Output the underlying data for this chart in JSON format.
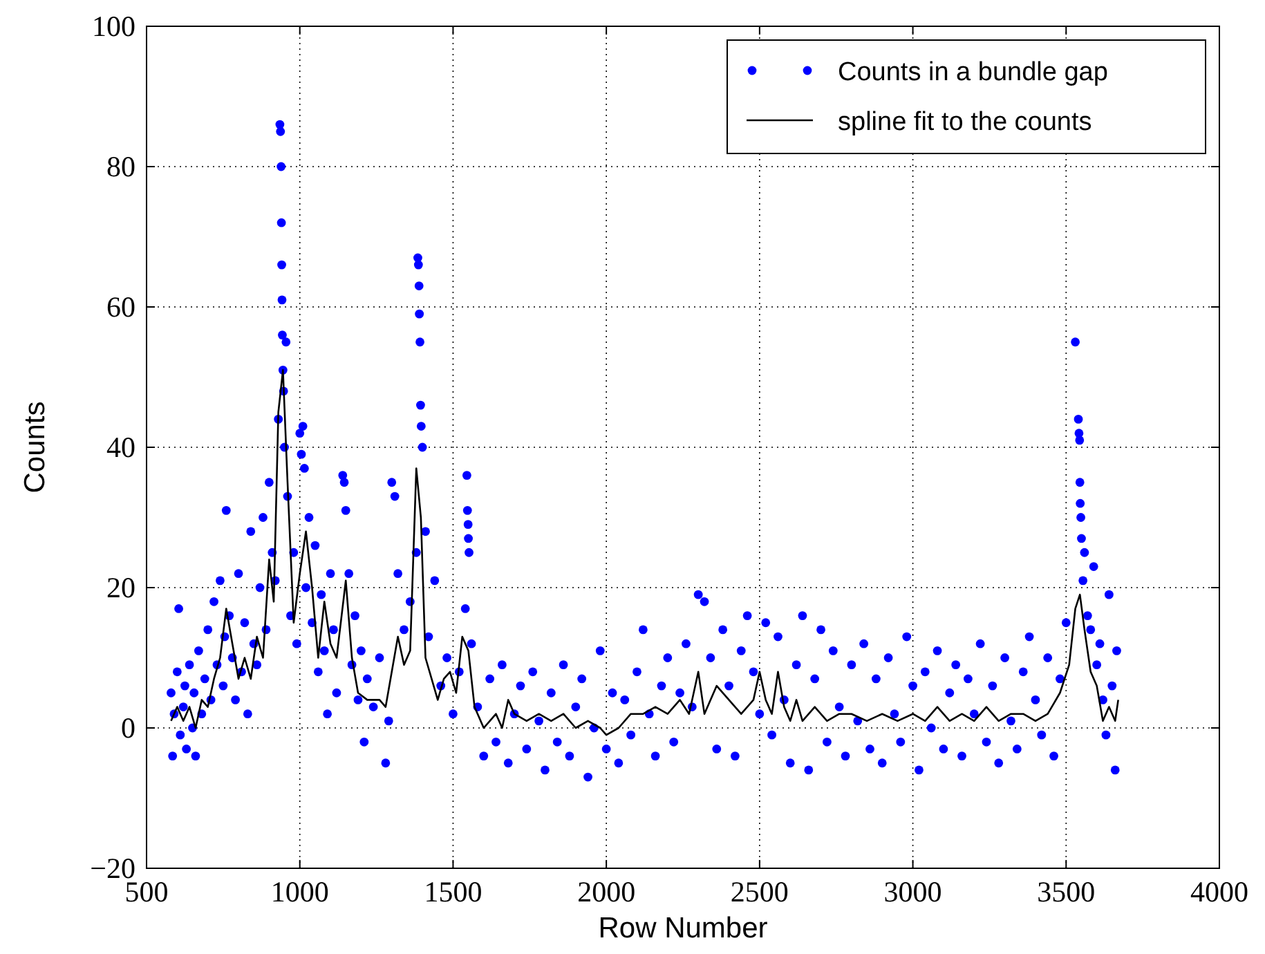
{
  "chart_data": {
    "type": "scatter",
    "xlabel": "Row Number",
    "ylabel": "Counts",
    "xlim": [
      500,
      4000
    ],
    "ylim": [
      -20,
      100
    ],
    "xticks": [
      500,
      1000,
      1500,
      2000,
      2500,
      3000,
      3500,
      4000
    ],
    "yticks": [
      -20,
      0,
      20,
      40,
      60,
      80,
      100
    ],
    "grid": true,
    "legend": "top right",
    "series": [
      {
        "name": "Counts in a bundle gap",
        "color": "#0000ff",
        "marker": "circle",
        "x": [
          580,
          585,
          590,
          600,
          605,
          610,
          620,
          625,
          630,
          640,
          650,
          655,
          660,
          670,
          680,
          690,
          700,
          710,
          720,
          730,
          740,
          750,
          755,
          760,
          770,
          780,
          790,
          800,
          810,
          820,
          830,
          840,
          850,
          860,
          870,
          880,
          890,
          900,
          910,
          920,
          930,
          935,
          937,
          939,
          940,
          941,
          942,
          943,
          945,
          947,
          950,
          955,
          960,
          970,
          980,
          990,
          1000,
          1005,
          1010,
          1015,
          1020,
          1030,
          1040,
          1050,
          1060,
          1070,
          1080,
          1090,
          1100,
          1110,
          1120,
          1140,
          1145,
          1150,
          1160,
          1170,
          1180,
          1190,
          1200,
          1210,
          1220,
          1240,
          1260,
          1280,
          1290,
          1300,
          1310,
          1320,
          1340,
          1360,
          1380,
          1385,
          1387,
          1389,
          1390,
          1392,
          1394,
          1396,
          1400,
          1410,
          1420,
          1440,
          1460,
          1480,
          1500,
          1520,
          1540,
          1545,
          1547,
          1549,
          1550,
          1552,
          1560,
          1580,
          1600,
          1620,
          1640,
          1660,
          1680,
          1700,
          1720,
          1740,
          1760,
          1780,
          1800,
          1820,
          1840,
          1860,
          1880,
          1900,
          1920,
          1940,
          1960,
          1980,
          2000,
          2020,
          2040,
          2060,
          2080,
          2100,
          2120,
          2140,
          2160,
          2180,
          2200,
          2220,
          2240,
          2260,
          2280,
          2300,
          2320,
          2340,
          2360,
          2380,
          2400,
          2420,
          2440,
          2460,
          2480,
          2500,
          2520,
          2540,
          2560,
          2580,
          2600,
          2620,
          2640,
          2660,
          2680,
          2700,
          2720,
          2740,
          2760,
          2780,
          2800,
          2820,
          2840,
          2860,
          2880,
          2900,
          2920,
          2940,
          2960,
          2980,
          3000,
          3020,
          3040,
          3060,
          3080,
          3100,
          3120,
          3140,
          3160,
          3180,
          3200,
          3220,
          3240,
          3260,
          3280,
          3300,
          3320,
          3340,
          3360,
          3380,
          3400,
          3420,
          3440,
          3460,
          3480,
          3500,
          3530,
          3540,
          3542,
          3544,
          3545,
          3546,
          3548,
          3550,
          3555,
          3560,
          3570,
          3580,
          3590,
          3600,
          3610,
          3620,
          3630,
          3640,
          3650,
          3660,
          3665
        ],
        "values": [
          5,
          -4,
          2,
          8,
          17,
          -1,
          3,
          6,
          -3,
          9,
          0,
          5,
          -4,
          11,
          2,
          7,
          14,
          4,
          18,
          9,
          21,
          6,
          13,
          31,
          16,
          10,
          4,
          22,
          8,
          15,
          2,
          28,
          12,
          9,
          20,
          30,
          14,
          35,
          25,
          21,
          44,
          86,
          85,
          80,
          72,
          66,
          61,
          56,
          51,
          48,
          40,
          55,
          33,
          16,
          25,
          12,
          42,
          39,
          43,
          37,
          20,
          30,
          15,
          26,
          8,
          19,
          11,
          2,
          22,
          14,
          5,
          36,
          35,
          31,
          22,
          9,
          16,
          4,
          11,
          -2,
          7,
          3,
          10,
          -5,
          1,
          35,
          33,
          22,
          14,
          18,
          25,
          67,
          66,
          63,
          59,
          55,
          46,
          43,
          40,
          28,
          13,
          21,
          6,
          10,
          2,
          8,
          17,
          36,
          31,
          29,
          27,
          25,
          12,
          3,
          -4,
          7,
          -2,
          9,
          -5,
          2,
          6,
          -3,
          8,
          1,
          -6,
          5,
          -2,
          9,
          -4,
          3,
          7,
          -7,
          0,
          11,
          -3,
          5,
          -5,
          4,
          -1,
          8,
          14,
          2,
          -4,
          6,
          10,
          -2,
          5,
          12,
          3,
          19,
          18,
          10,
          -3,
          14,
          6,
          -4,
          11,
          16,
          8,
          2,
          15,
          -1,
          13,
          4,
          -5,
          9,
          16,
          -6,
          7,
          14,
          -2,
          11,
          3,
          -4,
          9,
          1,
          12,
          -3,
          7,
          -5,
          10,
          2,
          -2,
          13,
          6,
          -6,
          8,
          0,
          11,
          -3,
          5,
          9,
          -4,
          7,
          2,
          12,
          -2,
          6,
          -5,
          10,
          1,
          -3,
          8,
          13,
          4,
          -1,
          10,
          -4,
          7,
          15,
          55,
          44,
          42,
          41,
          35,
          32,
          30,
          27,
          21,
          25,
          16,
          14,
          23,
          9,
          12,
          4,
          -1,
          19,
          6,
          -6,
          11
        ]
      },
      {
        "name": "spline fit to the counts",
        "type": "line",
        "color": "#000000",
        "marker": "none",
        "line_style": "solid",
        "x": [
          580,
          600,
          620,
          640,
          660,
          680,
          700,
          720,
          740,
          760,
          780,
          800,
          820,
          840,
          860,
          880,
          900,
          915,
          930,
          945,
          960,
          980,
          1000,
          1020,
          1040,
          1060,
          1080,
          1100,
          1120,
          1150,
          1170,
          1190,
          1220,
          1240,
          1260,
          1280,
          1300,
          1320,
          1340,
          1360,
          1380,
          1395,
          1410,
          1430,
          1450,
          1470,
          1490,
          1510,
          1530,
          1550,
          1570,
          1600,
          1620,
          1640,
          1660,
          1680,
          1700,
          1740,
          1780,
          1820,
          1860,
          1900,
          1940,
          1980,
          2000,
          2040,
          2080,
          2120,
          2160,
          2200,
          2240,
          2270,
          2300,
          2320,
          2360,
          2400,
          2440,
          2480,
          2500,
          2520,
          2540,
          2560,
          2580,
          2600,
          2620,
          2640,
          2680,
          2720,
          2760,
          2800,
          2850,
          2900,
          2950,
          3000,
          3040,
          3080,
          3120,
          3160,
          3200,
          3240,
          3280,
          3320,
          3360,
          3400,
          3440,
          3480,
          3510,
          3530,
          3545,
          3560,
          3580,
          3600,
          3620,
          3640,
          3660,
          3670
        ],
        "values": [
          1,
          3,
          1,
          3,
          0,
          4,
          3,
          7,
          10,
          17,
          12,
          7,
          10,
          7,
          13,
          10,
          24,
          18,
          45,
          51,
          35,
          15,
          22,
          28,
          20,
          10,
          18,
          12,
          10,
          21,
          10,
          5,
          4,
          4,
          4,
          3,
          8,
          13,
          9,
          11,
          37,
          30,
          10,
          7,
          4,
          7,
          8,
          5,
          13,
          11,
          3,
          0,
          1,
          2,
          0,
          4,
          2,
          1,
          2,
          1,
          2,
          0,
          1,
          0,
          -1,
          0,
          2,
          2,
          3,
          2,
          4,
          2,
          8,
          2,
          6,
          4,
          2,
          4,
          8,
          4,
          2,
          8,
          3,
          1,
          4,
          1,
          3,
          1,
          2,
          2,
          1,
          2,
          1,
          2,
          1,
          3,
          1,
          2,
          1,
          3,
          1,
          2,
          2,
          1,
          2,
          5,
          9,
          17,
          19,
          14,
          8,
          6,
          1,
          3,
          1,
          4
        ]
      }
    ]
  }
}
